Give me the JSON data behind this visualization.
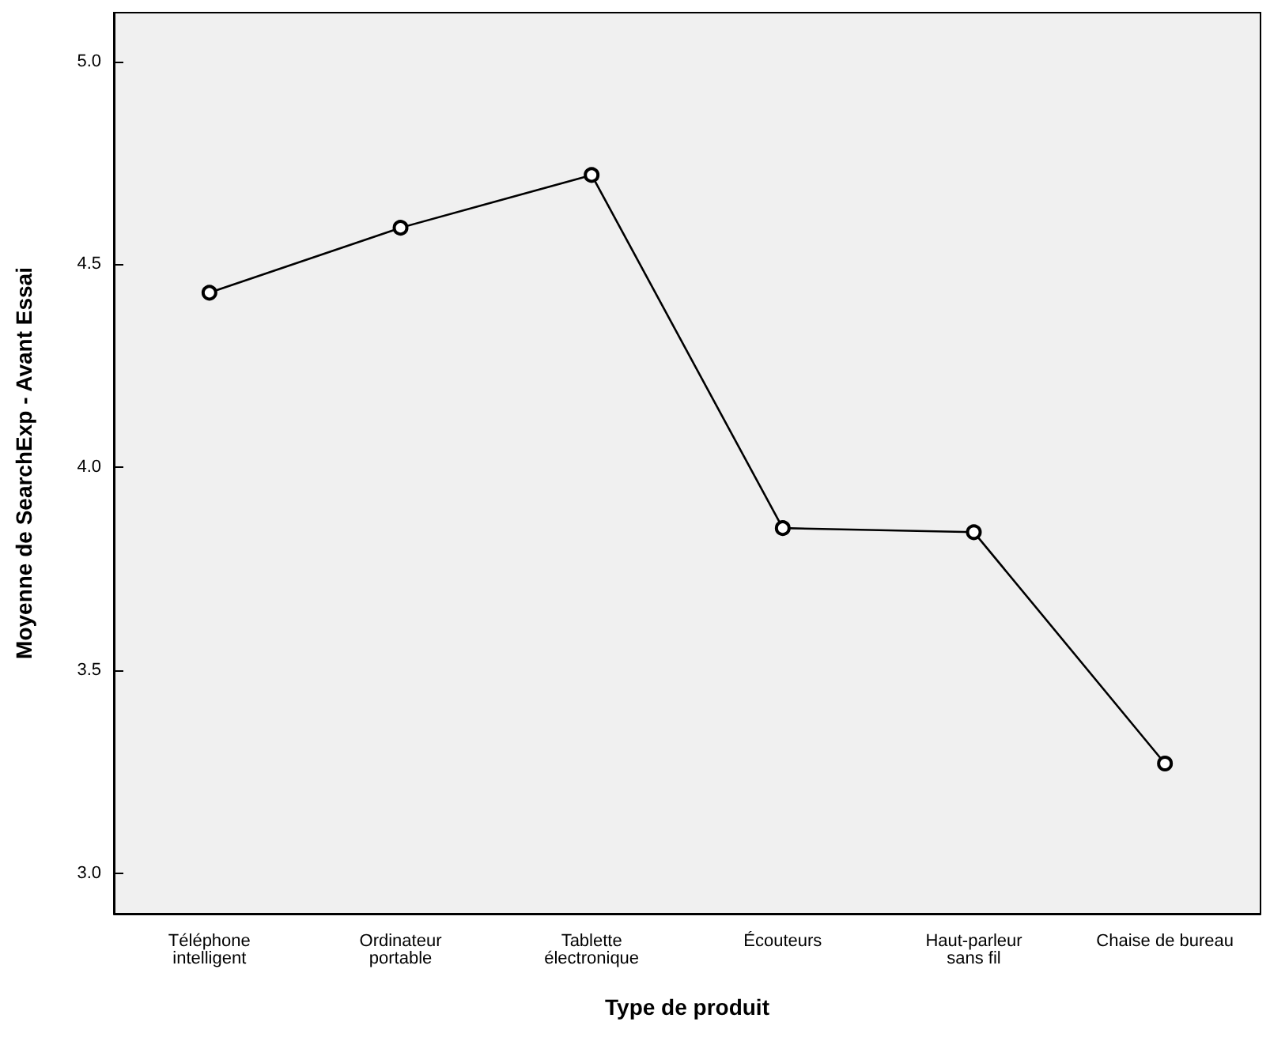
{
  "chart_data": {
    "type": "line",
    "xlabel": "Type de produit",
    "ylabel": "Moyenne de SearchExp - Avant Essai",
    "categories": [
      "Téléphone\nintelligent",
      "Ordinateur\nportable",
      "Tablette\nélectronique",
      "Écouteurs",
      "Haut-parleur\nsans fil",
      "Chaise de bureau"
    ],
    "series": [
      {
        "color": "#000000",
        "values": [
          4.43,
          4.59,
          4.72,
          3.85,
          3.84,
          3.27
        ]
      }
    ],
    "ylim": [
      2.9,
      5.12
    ],
    "yticks": [
      {
        "value": 3,
        "label": "3.0"
      },
      {
        "value": 3.5,
        "label": "3.5"
      },
      {
        "value": 4,
        "label": "4.0"
      },
      {
        "value": 4.5,
        "label": "4.5"
      },
      {
        "value": 5,
        "label": "5.0"
      }
    ],
    "grid": false,
    "marker": "circle",
    "line_style": "solid"
  }
}
